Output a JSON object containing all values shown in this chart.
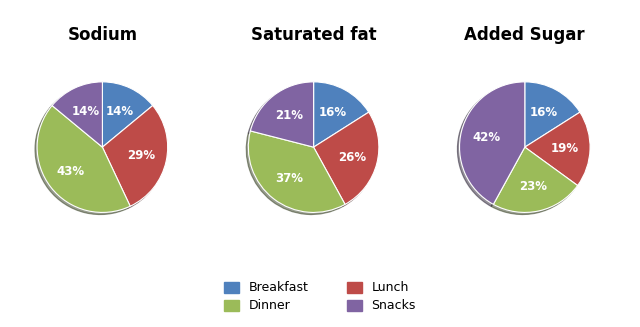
{
  "charts": [
    {
      "title": "Sodium",
      "values": [
        14,
        29,
        43,
        14
      ],
      "labels": [
        "14%",
        "29%",
        "43%",
        "14%"
      ],
      "order": [
        "Breakfast",
        "Lunch",
        "Dinner",
        "Snacks"
      ],
      "startangle": 90
    },
    {
      "title": "Saturated fat",
      "values": [
        16,
        26,
        37,
        21
      ],
      "labels": [
        "16%",
        "26%",
        "37%",
        "21%"
      ],
      "order": [
        "Breakfast",
        "Lunch",
        "Dinner",
        "Snacks"
      ],
      "startangle": 90
    },
    {
      "title": "Added Sugar",
      "values": [
        16,
        19,
        23,
        42
      ],
      "labels": [
        "16%",
        "19%",
        "23%",
        "42%"
      ],
      "order": [
        "Breakfast",
        "Lunch",
        "Dinner",
        "Snacks"
      ],
      "startangle": 90
    }
  ],
  "colors": {
    "Breakfast": "#4F81BD",
    "Lunch": "#BE4B48",
    "Dinner": "#9BBB59",
    "Snacks": "#8064A2"
  },
  "background_color": "#FFFFFF",
  "text_color": "#FFFFFF",
  "label_fontsize": 8.5,
  "title_fontsize": 12
}
